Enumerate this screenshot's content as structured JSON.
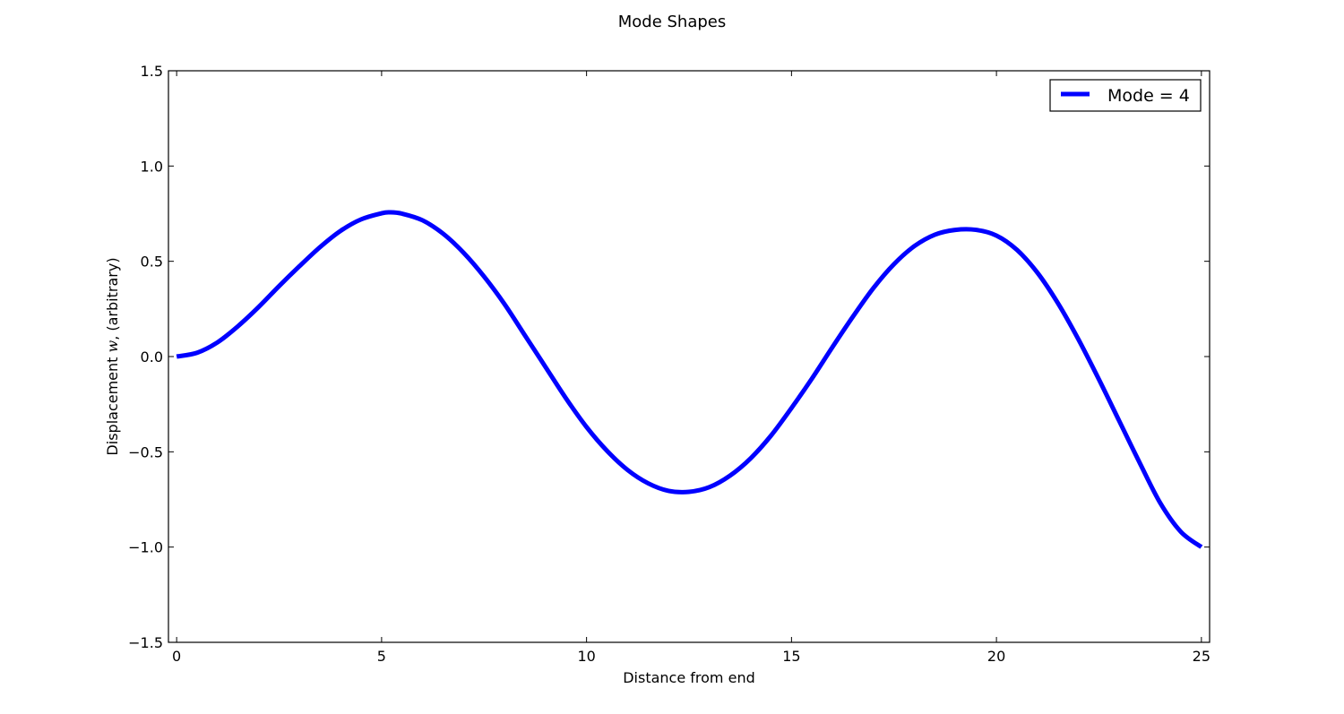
{
  "chart_data": {
    "type": "line",
    "title": "Mode Shapes",
    "xlabel": "Distance from end",
    "ylabel_prefix": "Displacement ",
    "ylabel_var": "w",
    "ylabel_suffix": ", (arbitrary)",
    "xlim": [
      -0.2,
      25.2
    ],
    "ylim": [
      -1.5,
      1.5
    ],
    "xticks": [
      0,
      5,
      10,
      15,
      20,
      25
    ],
    "xtick_labels": [
      "0",
      "5",
      "10",
      "15",
      "20",
      "25"
    ],
    "yticks": [
      1.5,
      1.0,
      0.5,
      0.0,
      -0.5,
      -1.0,
      -1.5
    ],
    "ytick_labels": [
      "1.5",
      "1.0",
      "0.5",
      "0.0",
      "−0.5",
      "−1.0",
      "−1.5"
    ],
    "grid": false,
    "legend_position": "top-right",
    "series": [
      {
        "name": "Mode = 4",
        "color": "#0000ff",
        "x": [
          0,
          0.5,
          1,
          1.5,
          2,
          2.5,
          3,
          3.5,
          4,
          4.5,
          5,
          5.2,
          5.5,
          6,
          6.5,
          7,
          7.5,
          8,
          8.5,
          9,
          9.5,
          10,
          10.5,
          11,
          11.5,
          12,
          12.5,
          13,
          13.5,
          14,
          14.5,
          15,
          15.5,
          16,
          16.5,
          17,
          17.5,
          18,
          18.5,
          19,
          19.5,
          20,
          20.5,
          21,
          21.5,
          22,
          22.5,
          23,
          23.5,
          24,
          24.5,
          25
        ],
        "y": [
          0.0,
          0.02,
          0.075,
          0.16,
          0.26,
          0.37,
          0.475,
          0.575,
          0.66,
          0.72,
          0.752,
          0.757,
          0.75,
          0.715,
          0.645,
          0.545,
          0.42,
          0.275,
          0.11,
          -0.055,
          -0.22,
          -0.37,
          -0.495,
          -0.595,
          -0.665,
          -0.705,
          -0.71,
          -0.685,
          -0.625,
          -0.535,
          -0.415,
          -0.27,
          -0.115,
          0.05,
          0.21,
          0.36,
          0.485,
          0.58,
          0.64,
          0.665,
          0.665,
          0.635,
          0.56,
          0.44,
          0.28,
          0.09,
          -0.12,
          -0.34,
          -0.56,
          -0.77,
          -0.92,
          -1.0
        ]
      }
    ]
  }
}
